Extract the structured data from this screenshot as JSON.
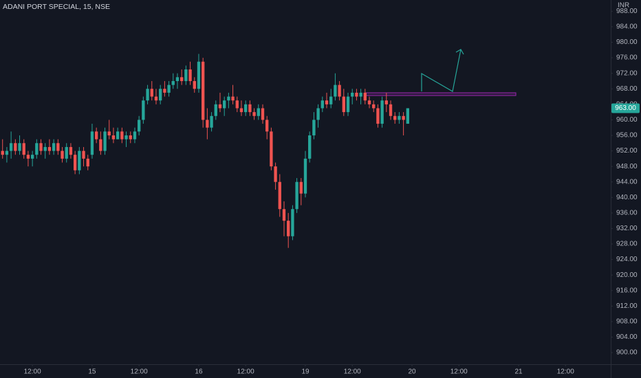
{
  "chart_data": {
    "type": "candlestick",
    "title": "ADANI PORT SPECIAL, 15, NSE",
    "currency": "INR",
    "up_color": "#26a69a",
    "down_color": "#ef5350",
    "grid": false,
    "last_price": {
      "value": 963,
      "label": "963.00"
    },
    "xlim": [
      -21.6,
      121.6
    ],
    "xticks": [
      {
        "value": -14,
        "label": "12:00"
      },
      {
        "value": 0,
        "label": "15"
      },
      {
        "value": 11,
        "label": "12:00"
      },
      {
        "value": 25,
        "label": "16"
      },
      {
        "value": 36,
        "label": "12:00"
      },
      {
        "value": 50,
        "label": "19"
      },
      {
        "value": 61,
        "label": "12:00"
      },
      {
        "value": 75,
        "label": "20"
      },
      {
        "value": 86,
        "label": "12:00"
      },
      {
        "value": 100,
        "label": "21"
      },
      {
        "value": 111,
        "label": "12:00"
      }
    ],
    "ylim": [
      897,
      990.9
    ],
    "yticks": [
      {
        "value": 900,
        "label": "900.00"
      },
      {
        "value": 904,
        "label": "904.00"
      },
      {
        "value": 908,
        "label": "908.00"
      },
      {
        "value": 912,
        "label": "912.00"
      },
      {
        "value": 916,
        "label": "916.00"
      },
      {
        "value": 920,
        "label": "920.00"
      },
      {
        "value": 924,
        "label": "924.00"
      },
      {
        "value": 928,
        "label": "928.00"
      },
      {
        "value": 932,
        "label": "932.00"
      },
      {
        "value": 936,
        "label": "936.00"
      },
      {
        "value": 940,
        "label": "940.00"
      },
      {
        "value": 944,
        "label": "944.00"
      },
      {
        "value": 948,
        "label": "948.00"
      },
      {
        "value": 952,
        "label": "952.00"
      },
      {
        "value": 956,
        "label": "956.00"
      },
      {
        "value": 960,
        "label": "960.00"
      },
      {
        "value": 964,
        "label": "964.00"
      },
      {
        "value": 968,
        "label": "968.00"
      },
      {
        "value": 972,
        "label": "972.00"
      },
      {
        "value": 976,
        "label": "976.00"
      },
      {
        "value": 980,
        "label": "980.00"
      },
      {
        "value": 984,
        "label": "984.00"
      },
      {
        "value": 988,
        "label": "988.00"
      }
    ],
    "x": [
      -21,
      -20,
      -19,
      -18,
      -17,
      -16,
      -15,
      -14,
      -13,
      -12,
      -11,
      -10,
      -9,
      -8,
      -7,
      -6,
      -5,
      -4,
      -3,
      -2,
      -1,
      0,
      1,
      2,
      3,
      4,
      5,
      6,
      7,
      8,
      9,
      10,
      11,
      12,
      13,
      14,
      15,
      16,
      17,
      18,
      19,
      20,
      21,
      22,
      23,
      24,
      25,
      26,
      27,
      28,
      29,
      30,
      31,
      32,
      33,
      34,
      35,
      36,
      37,
      38,
      39,
      40,
      41,
      42,
      43,
      44,
      45,
      46,
      47,
      48,
      49,
      50,
      51,
      52,
      53,
      54,
      55,
      56,
      57,
      58,
      59,
      60,
      61,
      62,
      63,
      64,
      65,
      66,
      67,
      68,
      69,
      70,
      71,
      72,
      73,
      74
    ],
    "open": [
      952,
      951,
      952,
      954,
      952,
      954,
      951,
      950,
      951,
      954,
      952,
      953,
      952,
      954,
      952,
      950,
      953,
      951,
      947,
      952,
      950,
      951,
      957,
      955,
      952,
      957,
      956,
      955,
      957,
      955,
      956,
      955,
      957,
      960,
      965,
      968,
      966,
      965,
      968,
      967,
      969,
      970,
      971,
      970,
      973,
      970,
      968,
      975,
      960,
      958,
      961,
      964,
      963,
      965,
      966,
      965,
      963,
      962,
      964,
      962,
      961,
      963,
      960,
      957,
      948,
      944,
      937,
      934,
      930,
      937,
      944,
      941,
      950,
      956,
      960,
      963,
      965,
      964,
      966,
      969,
      966,
      962,
      966,
      967,
      966,
      967,
      965,
      964,
      963,
      959,
      965,
      964,
      961,
      960,
      961,
      959
    ],
    "high": [
      955,
      953,
      957,
      955,
      956,
      955,
      952,
      952,
      955,
      955,
      954,
      955,
      955,
      955,
      953,
      954,
      954,
      952,
      953,
      953,
      951,
      959,
      958,
      957,
      958,
      960,
      958,
      958,
      958,
      957,
      957,
      958,
      961,
      966,
      969,
      970,
      968,
      969,
      970,
      970,
      972,
      972,
      973,
      974,
      975,
      971,
      977,
      976,
      963,
      962,
      965,
      967,
      966,
      967,
      969,
      966,
      965,
      965,
      965,
      963,
      964,
      964,
      961,
      958,
      949,
      946,
      939,
      936,
      938,
      945,
      945,
      952,
      957,
      962,
      964,
      966,
      967,
      968,
      972,
      970,
      968,
      967,
      968,
      968,
      968,
      968,
      966,
      965,
      964,
      966,
      967,
      965,
      962,
      962,
      962,
      963
    ],
    "low": [
      950,
      949,
      950,
      951,
      951,
      950,
      948,
      948,
      950,
      951,
      950,
      951,
      951,
      951,
      949,
      949,
      950,
      946,
      946,
      948,
      947,
      950,
      954,
      951,
      951,
      955,
      954,
      955,
      954,
      953,
      954,
      954,
      956,
      959,
      964,
      965,
      964,
      964,
      966,
      966,
      968,
      968,
      969,
      969,
      969,
      967,
      967,
      958,
      955,
      957,
      960,
      962,
      961,
      963,
      964,
      962,
      961,
      961,
      961,
      960,
      960,
      959,
      955,
      947,
      942,
      935,
      930,
      927,
      929,
      936,
      938,
      940,
      949,
      955,
      958,
      962,
      963,
      963,
      965,
      965,
      961,
      961,
      964,
      965,
      964,
      964,
      963,
      962,
      958,
      958,
      962,
      960,
      959,
      959,
      956,
      959
    ],
    "close": [
      951,
      952,
      954,
      952,
      954,
      951,
      950,
      951,
      954,
      952,
      953,
      952,
      954,
      952,
      950,
      953,
      951,
      947,
      952,
      950,
      948,
      957,
      955,
      952,
      957,
      956,
      955,
      957,
      955,
      956,
      955,
      957,
      960,
      965,
      968,
      966,
      965,
      968,
      967,
      969,
      970,
      971,
      970,
      973,
      970,
      968,
      975,
      960,
      958,
      961,
      964,
      963,
      965,
      966,
      965,
      963,
      962,
      964,
      962,
      961,
      963,
      960,
      957,
      948,
      944,
      937,
      934,
      930,
      937,
      944,
      941,
      950,
      956,
      960,
      963,
      965,
      964,
      966,
      969,
      966,
      962,
      966,
      967,
      966,
      967,
      965,
      964,
      963,
      959,
      965,
      964,
      961,
      960,
      961,
      960,
      963
    ]
  }
}
